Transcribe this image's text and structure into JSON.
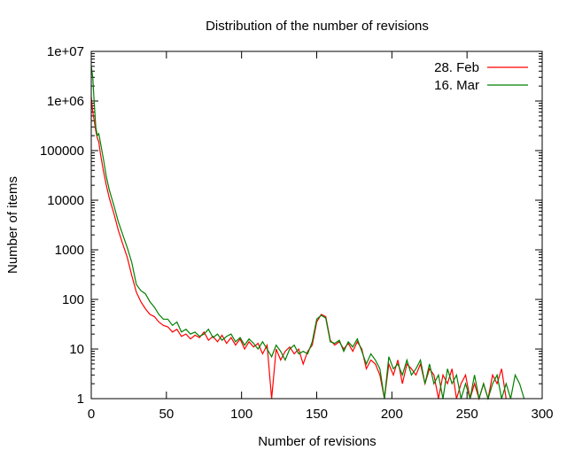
{
  "chart_data": {
    "type": "line",
    "title": "Distribution of the number of revisions",
    "xlabel": "Number of revisions",
    "ylabel": "Number of items",
    "xlim": [
      0,
      300
    ],
    "ylim": [
      1,
      10000000
    ],
    "yscale": "log",
    "grid": false,
    "legend_position": "top-right",
    "x_ticks": [
      "0",
      "50",
      "100",
      "150",
      "200",
      "250",
      "300"
    ],
    "x_tick_values": [
      0,
      50,
      100,
      150,
      200,
      250,
      300
    ],
    "y_ticks": [
      "1",
      "10",
      "100",
      "1000",
      "10000",
      "100000",
      "1e+06",
      "1e+07"
    ],
    "y_tick_values": [
      1,
      10,
      100,
      1000,
      10000,
      100000,
      1000000,
      10000000
    ],
    "x": [
      0,
      1,
      2,
      3,
      4,
      5,
      6,
      8,
      10,
      12,
      15,
      18,
      21,
      24,
      27,
      30,
      33,
      36,
      39,
      42,
      45,
      48,
      51,
      54,
      57,
      60,
      63,
      66,
      69,
      72,
      75,
      78,
      81,
      84,
      87,
      90,
      93,
      96,
      99,
      102,
      105,
      108,
      111,
      114,
      117,
      120,
      123,
      126,
      129,
      132,
      135,
      138,
      141,
      144,
      147,
      150,
      153,
      156,
      159,
      162,
      165,
      168,
      171,
      174,
      177,
      180,
      183,
      186,
      189,
      192,
      195,
      198,
      201,
      204,
      207,
      210,
      213,
      216,
      219,
      222,
      225,
      228,
      231,
      234,
      237,
      240,
      243,
      246,
      249,
      252,
      255,
      258,
      261,
      264,
      267,
      270,
      273,
      276,
      279,
      282,
      285,
      288
    ],
    "series": [
      {
        "name": "28. Feb",
        "color": "#ff0000",
        "values": [
          1200000,
          600000,
          400000,
          250000,
          180000,
          150000,
          90000,
          40000,
          20000,
          11000,
          5500,
          2500,
          1300,
          700,
          300,
          140,
          90,
          65,
          50,
          45,
          35,
          30,
          28,
          22,
          25,
          18,
          20,
          16,
          19,
          17,
          22,
          15,
          18,
          14,
          19,
          13,
          17,
          12,
          16,
          10,
          14,
          11,
          13,
          8,
          12,
          1,
          10,
          6,
          9,
          11,
          8,
          10,
          5,
          9,
          12,
          35,
          50,
          45,
          15,
          12,
          14,
          10,
          13,
          9,
          14,
          10,
          4,
          6,
          5,
          3,
          1,
          5,
          3,
          6,
          2,
          5,
          4,
          3,
          5,
          2,
          4,
          3,
          1,
          3,
          2,
          4,
          1,
          2,
          3,
          1,
          2,
          1,
          2,
          1,
          3,
          2,
          4,
          1,
          null,
          null,
          null,
          null
        ]
      },
      {
        "name": "16. Mar",
        "color": "#008000",
        "values": [
          5000000,
          3000000,
          900000,
          300000,
          200000,
          220000,
          150000,
          70000,
          30000,
          16000,
          8000,
          3700,
          2000,
          1100,
          550,
          200,
          150,
          130,
          90,
          70,
          50,
          40,
          40,
          30,
          35,
          22,
          25,
          20,
          22,
          18,
          20,
          25,
          17,
          20,
          15,
          18,
          20,
          14,
          17,
          12,
          16,
          13,
          10,
          14,
          10,
          7,
          12,
          9,
          6,
          10,
          12,
          8,
          9,
          8,
          14,
          40,
          48,
          42,
          14,
          13,
          15,
          9,
          14,
          11,
          16,
          9,
          5,
          8,
          6,
          4,
          1,
          7,
          4,
          5,
          3,
          6,
          3,
          4,
          6,
          2,
          5,
          2,
          3,
          1,
          4,
          2,
          3,
          1,
          2,
          1,
          3,
          1,
          2,
          1,
          2,
          3,
          1,
          2,
          1,
          3,
          2,
          1
        ]
      }
    ]
  }
}
